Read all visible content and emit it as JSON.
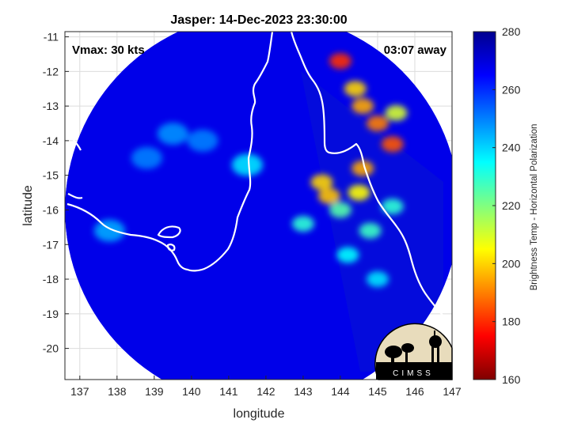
{
  "figure": {
    "title": "Jasper: 14-Dec-2023 23:30:00",
    "vmax_label": "Vmax: 30 kts",
    "time_away_label": "03:07 away",
    "xlabel": "longitude",
    "ylabel": "latitude",
    "logo_text": "CIMSS"
  },
  "colorbar": {
    "label": "Brightness Temp - Horizontal Polarization",
    "range": [
      160,
      280
    ],
    "ticks": [
      "280",
      "260",
      "240",
      "220",
      "200",
      "180",
      "160"
    ],
    "tick_values": [
      280,
      260,
      240,
      220,
      200,
      180,
      160
    ],
    "colormap": "jet",
    "colormap_stops": [
      "#7f0000",
      "#ff0000",
      "#ff8000",
      "#ffff00",
      "#80ff80",
      "#00ffff",
      "#0080ff",
      "#0000ff",
      "#00008f"
    ]
  },
  "chart_data": {
    "type": "heatmap",
    "title": "Jasper: 14-Dec-2023 23:30:00",
    "xlabel": "longitude",
    "ylabel": "latitude",
    "xlim": [
      136.6,
      147
    ],
    "ylim": [
      -20.9,
      -10.85
    ],
    "xticks": [
      137,
      138,
      139,
      140,
      141,
      142,
      143,
      144,
      145,
      146,
      147
    ],
    "yticks": [
      -11,
      -12,
      -13,
      -14,
      -15,
      -16,
      -17,
      -18,
      -19,
      -20
    ],
    "grid": true,
    "swath": {
      "center": [
        141.9,
        -16.0
      ],
      "radius_deg": 5.3
    },
    "background_tb": 268,
    "features": [
      {
        "name": "rainband",
        "lon": 144.0,
        "lat": -11.7,
        "tb": 180
      },
      {
        "name": "rainband",
        "lon": 144.4,
        "lat": -12.5,
        "tb": 200
      },
      {
        "name": "rainband",
        "lon": 144.6,
        "lat": -13.0,
        "tb": 195
      },
      {
        "name": "rainband",
        "lon": 145.0,
        "lat": -13.5,
        "tb": 190
      },
      {
        "name": "rainband",
        "lon": 145.4,
        "lat": -14.1,
        "tb": 185
      },
      {
        "name": "rainband",
        "lon": 145.5,
        "lat": -13.2,
        "tb": 210
      },
      {
        "name": "rainband",
        "lon": 144.6,
        "lat": -14.8,
        "tb": 195
      },
      {
        "name": "rainband",
        "lon": 144.5,
        "lat": -15.5,
        "tb": 205
      },
      {
        "name": "rainband",
        "lon": 143.5,
        "lat": -15.2,
        "tb": 200
      },
      {
        "name": "rainband",
        "lon": 143.7,
        "lat": -15.6,
        "tb": 198
      },
      {
        "name": "rainband",
        "lon": 144.0,
        "lat": -16.0,
        "tb": 225
      },
      {
        "name": "rainband",
        "lon": 143.0,
        "lat": -16.4,
        "tb": 230
      },
      {
        "name": "rainband",
        "lon": 144.8,
        "lat": -16.6,
        "tb": 228
      },
      {
        "name": "rainband",
        "lon": 144.2,
        "lat": -17.3,
        "tb": 235
      },
      {
        "name": "rainband",
        "lon": 145.4,
        "lat": -15.9,
        "tb": 230
      },
      {
        "name": "rainband",
        "lon": 145.0,
        "lat": -18.0,
        "tb": 238
      },
      {
        "name": "streak",
        "lon": 141.5,
        "lat": -14.7,
        "tb": 238
      },
      {
        "name": "streak",
        "lon": 139.5,
        "lat": -13.8,
        "tb": 248
      },
      {
        "name": "streak",
        "lon": 140.3,
        "lat": -14.0,
        "tb": 250
      },
      {
        "name": "streak",
        "lon": 138.8,
        "lat": -14.5,
        "tb": 250
      },
      {
        "name": "streak",
        "lon": 137.8,
        "lat": -16.6,
        "tb": 245
      }
    ]
  }
}
